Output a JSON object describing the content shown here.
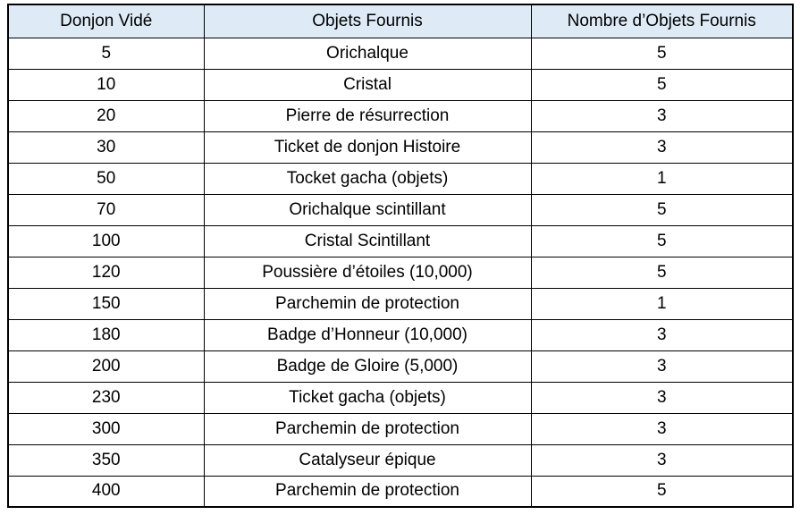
{
  "table": {
    "header_bg": "#DEEBF7",
    "border_color": "#000000",
    "headers": {
      "col1": "Donjon Vidé",
      "col2": "Objets Fournis",
      "col3": "Nombre d’Objets Fournis"
    },
    "rows": [
      {
        "donjon": "5",
        "objet": "Orichalque",
        "nombre": "5"
      },
      {
        "donjon": "10",
        "objet": "Cristal",
        "nombre": "5"
      },
      {
        "donjon": "20",
        "objet": "Pierre de résurrection",
        "nombre": "3"
      },
      {
        "donjon": "30",
        "objet": "Ticket de donjon Histoire",
        "nombre": "3"
      },
      {
        "donjon": "50",
        "objet": "Tocket gacha (objets)",
        "nombre": "1"
      },
      {
        "donjon": "70",
        "objet": "Orichalque scintillant",
        "nombre": "5"
      },
      {
        "donjon": "100",
        "objet": "Cristal Scintillant",
        "nombre": "5"
      },
      {
        "donjon": "120",
        "objet": "Poussière d’étoiles (10,000)",
        "nombre": "5"
      },
      {
        "donjon": "150",
        "objet": "Parchemin de protection",
        "nombre": "1"
      },
      {
        "donjon": "180",
        "objet": "Badge d’Honneur (10,000)",
        "nombre": "3"
      },
      {
        "donjon": "200",
        "objet": "Badge de Gloire (5,000)",
        "nombre": "3"
      },
      {
        "donjon": "230",
        "objet": "Ticket gacha (objets)",
        "nombre": "3"
      },
      {
        "donjon": "300",
        "objet": "Parchemin de protection",
        "nombre": "3"
      },
      {
        "donjon": "350",
        "objet": "Catalyseur épique",
        "nombre": "3"
      },
      {
        "donjon": "400",
        "objet": "Parchemin de protection",
        "nombre": "5"
      }
    ]
  }
}
